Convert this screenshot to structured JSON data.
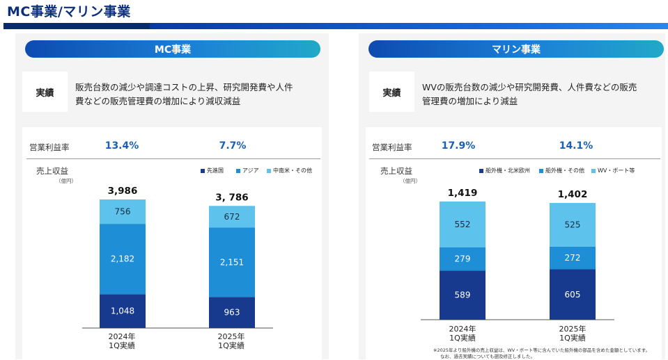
{
  "page": {
    "title": "MC事業/マリン事業"
  },
  "mc": {
    "pill": "MC事業",
    "achievement_label": "実績",
    "achievement_text_1": "販売台数の減少や調達コストの上昇、研究開発費や人件",
    "achievement_text_2": "費などの販売管理費の増加により減収減益",
    "margin_label": "営業利益率",
    "margins": [
      "13.4%",
      "7.7%"
    ],
    "revenue_label": "売上収益",
    "unit": "（億円）"
  },
  "marine": {
    "pill": "マリン事業",
    "achievement_label": "実績",
    "achievement_text_1": "WVの販売台数の減少や研究開発費、人件費などの販売",
    "achievement_text_2": "管理費の増加により減益",
    "margin_label": "営業利益率",
    "margins": [
      "17.9%",
      "14.1%"
    ],
    "revenue_label": "売上収益",
    "unit": "（億円）",
    "note_1": "※2025年より船外機の売上収益は、WV・ボート等に含んでいた船外機の部品を含めた金額としています。",
    "note_2": "なお、過去実績についても遡及修正しました。"
  },
  "chart_data": [
    {
      "type": "bar",
      "stacked": true,
      "categories": [
        "2024年\n1Q実績",
        "2025年\n1Q実績"
      ],
      "totals": [
        "3,986",
        "3, 786"
      ],
      "series": [
        {
          "name": "先進国",
          "values": [
            1048,
            963
          ],
          "labels": [
            "1,048",
            "963"
          ],
          "color": "#173a8f",
          "label_color": "#ffffff"
        },
        {
          "name": "アジア",
          "values": [
            2182,
            2151
          ],
          "labels": [
            "2,182",
            "2,151"
          ],
          "color": "#1e8fd6",
          "label_color": "#ffffff"
        },
        {
          "name": "中南米・その他",
          "values": [
            756,
            672
          ],
          "labels": [
            "756",
            "672"
          ],
          "color": "#5ec3ec",
          "label_color": "#1a2a40"
        }
      ],
      "ylabel": "売上収益",
      "unit": "（億円）",
      "legend_position": "top-right"
    },
    {
      "type": "bar",
      "stacked": true,
      "categories": [
        "2024年\n1Q実績",
        "2025年\n1Q実績"
      ],
      "totals": [
        "1,419",
        "1,402"
      ],
      "series": [
        {
          "name": "船外機・北米欧州",
          "values": [
            589,
            605
          ],
          "labels": [
            "589",
            "605"
          ],
          "color": "#173a8f",
          "label_color": "#ffffff"
        },
        {
          "name": "船外機・その他",
          "values": [
            279,
            272
          ],
          "labels": [
            "279",
            "272"
          ],
          "color": "#1e8fd6",
          "label_color": "#ffffff"
        },
        {
          "name": "WV・ボート等",
          "values": [
            552,
            525
          ],
          "labels": [
            "552",
            "525"
          ],
          "color": "#5ec3ec",
          "label_color": "#1a2a40"
        }
      ],
      "ylabel": "売上収益",
      "unit": "（億円）",
      "legend_position": "top-right"
    }
  ]
}
